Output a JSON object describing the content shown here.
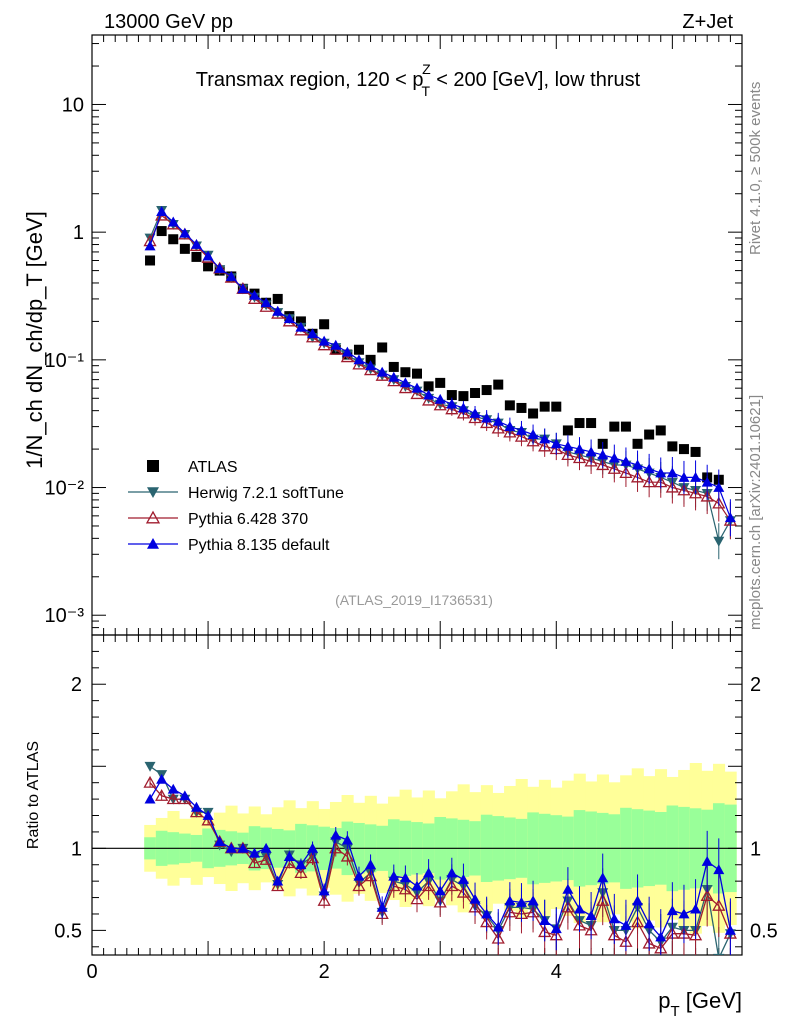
{
  "header": {
    "left": "13000 GeV pp",
    "right": "Z+Jet"
  },
  "side_text": {
    "top": "Rivet 4.1.0, ≥ 500k events",
    "bottom": "mcplots.cern.ch [arXiv:2401.10621]"
  },
  "chart_data": {
    "type": "scatter",
    "title": "Transmax region, 120 < pᵀᶻ < 200 [GeV], low thrust",
    "title_parts": {
      "pre": "Transmax region, 120 < p",
      "sup": "Z",
      "sub": "T",
      "post": " < 200 [GeV], low thrust"
    },
    "analysis_id": "(ATLAS_2019_I1736531)",
    "xlabel": "p_T [GeV]",
    "xlabel_parts": {
      "main": "p",
      "sub": "T",
      "unit": " [GeV]"
    },
    "ylabel": "1/N_ch dN_ch/dp_T [GeV]",
    "ratio_ylabel": "Ratio to ATLAS",
    "xlim": [
      0,
      5.6
    ],
    "ylim": [
      0.0007,
      35
    ],
    "ratio_ylim": [
      0.35,
      2.3
    ],
    "x_ticks": [
      "0",
      "2",
      "4"
    ],
    "y_ticks": [
      "10⁻³",
      "10⁻²",
      "10⁻¹",
      "1",
      "10"
    ],
    "ratio_ticks": [
      "0.5",
      "1",
      "2"
    ],
    "x": [
      0.5,
      0.6,
      0.7,
      0.8,
      0.9,
      1.0,
      1.1,
      1.2,
      1.3,
      1.4,
      1.5,
      1.6,
      1.7,
      1.8,
      1.9,
      2.0,
      2.1,
      2.2,
      2.3,
      2.4,
      2.5,
      2.6,
      2.7,
      2.8,
      2.9,
      3.0,
      3.1,
      3.2,
      3.3,
      3.4,
      3.5,
      3.6,
      3.7,
      3.8,
      3.9,
      4.0,
      4.1,
      4.2,
      4.3,
      4.4,
      4.5,
      4.6,
      4.7,
      4.8,
      4.9,
      5.0,
      5.1,
      5.2,
      5.3,
      5.4,
      5.5
    ],
    "series": [
      {
        "name": "ATLAS",
        "color": "#000000",
        "marker": "square",
        "values": [
          0.6,
          1.02,
          0.88,
          0.74,
          0.64,
          0.54,
          0.5,
          0.45,
          0.36,
          0.33,
          0.28,
          0.3,
          0.22,
          0.2,
          0.16,
          0.19,
          0.12,
          0.11,
          0.12,
          0.1,
          0.125,
          0.088,
          0.08,
          0.078,
          0.062,
          0.066,
          0.053,
          0.052,
          0.055,
          0.058,
          0.064,
          0.044,
          0.042,
          0.038,
          0.043,
          0.043,
          0.028,
          0.032,
          0.032,
          0.022,
          0.03,
          0.03,
          0.022,
          0.026,
          0.028,
          0.021,
          0.02,
          0.019,
          0.012,
          0.0115,
          null
        ]
      },
      {
        "name": "Herwig 7.2.1 softTune",
        "color": "#2a6470",
        "marker": "triangle-down",
        "values": [
          0.9,
          1.48,
          1.15,
          0.96,
          0.78,
          0.66,
          0.51,
          0.44,
          0.36,
          0.31,
          0.27,
          0.235,
          0.21,
          0.18,
          0.15,
          0.135,
          0.125,
          0.11,
          0.095,
          0.085,
          0.076,
          0.07,
          0.062,
          0.057,
          0.05,
          0.045,
          0.043,
          0.04,
          0.036,
          0.034,
          0.032,
          0.028,
          0.027,
          0.024,
          0.024,
          0.022,
          0.019,
          0.018,
          0.017,
          0.016,
          0.015,
          0.015,
          0.014,
          0.013,
          0.012,
          0.011,
          0.01,
          0.0095,
          0.009,
          0.0038,
          0.0055
        ]
      },
      {
        "name": "Pythia 6.428 370",
        "color": "#a01c2e",
        "marker": "triangle-up-open",
        "values": [
          0.85,
          1.35,
          1.15,
          0.96,
          0.78,
          0.63,
          0.52,
          0.44,
          0.36,
          0.3,
          0.26,
          0.23,
          0.2,
          0.17,
          0.15,
          0.13,
          0.12,
          0.105,
          0.092,
          0.083,
          0.075,
          0.068,
          0.06,
          0.054,
          0.048,
          0.044,
          0.041,
          0.038,
          0.035,
          0.032,
          0.029,
          0.027,
          0.025,
          0.023,
          0.021,
          0.02,
          0.018,
          0.017,
          0.016,
          0.015,
          0.014,
          0.013,
          0.012,
          0.011,
          0.011,
          0.01,
          0.0095,
          0.009,
          0.0085,
          0.0075,
          0.0055
        ]
      },
      {
        "name": "Pythia 8.135 default",
        "color": "#0000e0",
        "marker": "triangle-up",
        "values": [
          0.78,
          1.45,
          1.2,
          0.98,
          0.8,
          0.65,
          0.52,
          0.45,
          0.36,
          0.32,
          0.28,
          0.24,
          0.21,
          0.18,
          0.16,
          0.14,
          0.13,
          0.115,
          0.1,
          0.09,
          0.08,
          0.073,
          0.066,
          0.06,
          0.053,
          0.049,
          0.045,
          0.042,
          0.038,
          0.035,
          0.033,
          0.03,
          0.028,
          0.026,
          0.024,
          0.022,
          0.021,
          0.02,
          0.019,
          0.018,
          0.017,
          0.016,
          0.015,
          0.014,
          0.013,
          0.013,
          0.012,
          0.012,
          0.011,
          0.01,
          0.0058
        ]
      }
    ],
    "ratio_series": [
      {
        "name": "Herwig 7.2.1 softTune",
        "values": [
          1.5,
          1.45,
          1.3,
          1.3,
          1.22,
          1.22,
          1.02,
          0.98,
          1.0,
          0.95,
          0.95,
          0.78,
          0.96,
          0.9,
          0.95,
          0.71,
          1.04,
          1.0,
          0.79,
          0.85,
          0.61,
          0.8,
          0.78,
          0.73,
          0.8,
          0.68,
          0.81,
          0.77,
          0.65,
          0.59,
          0.5,
          0.64,
          0.64,
          0.63,
          0.56,
          0.51,
          0.68,
          0.56,
          0.53,
          0.73,
          0.5,
          0.5,
          0.64,
          0.5,
          0.43,
          0.52,
          0.5,
          0.5,
          0.75,
          0.33,
          0.48
        ]
      },
      {
        "name": "Pythia 6.428 370",
        "values": [
          1.4,
          1.32,
          1.3,
          1.3,
          1.22,
          1.17,
          1.04,
          1.0,
          1.0,
          0.91,
          0.93,
          0.77,
          0.91,
          0.85,
          0.94,
          0.68,
          1.0,
          0.95,
          0.77,
          0.83,
          0.6,
          0.77,
          0.75,
          0.69,
          0.77,
          0.67,
          0.77,
          0.73,
          0.64,
          0.55,
          0.45,
          0.61,
          0.6,
          0.61,
          0.49,
          0.47,
          0.64,
          0.53,
          0.5,
          0.68,
          0.47,
          0.43,
          0.55,
          0.42,
          0.39,
          0.48,
          0.48,
          0.47,
          0.71,
          0.65,
          0.48
        ]
      },
      {
        "name": "Pythia 8.135 default",
        "values": [
          1.3,
          1.42,
          1.36,
          1.32,
          1.25,
          1.2,
          1.04,
          1.0,
          1.0,
          0.97,
          1.0,
          0.8,
          0.95,
          0.9,
          1.0,
          0.74,
          1.08,
          1.05,
          0.83,
          0.9,
          0.64,
          0.83,
          0.82,
          0.77,
          0.85,
          0.74,
          0.85,
          0.81,
          0.69,
          0.6,
          0.52,
          0.68,
          0.67,
          0.68,
          0.56,
          0.51,
          0.75,
          0.63,
          0.59,
          0.82,
          0.57,
          0.53,
          0.68,
          0.54,
          0.46,
          0.62,
          0.6,
          0.63,
          0.92,
          0.87,
          0.5
        ]
      }
    ]
  }
}
